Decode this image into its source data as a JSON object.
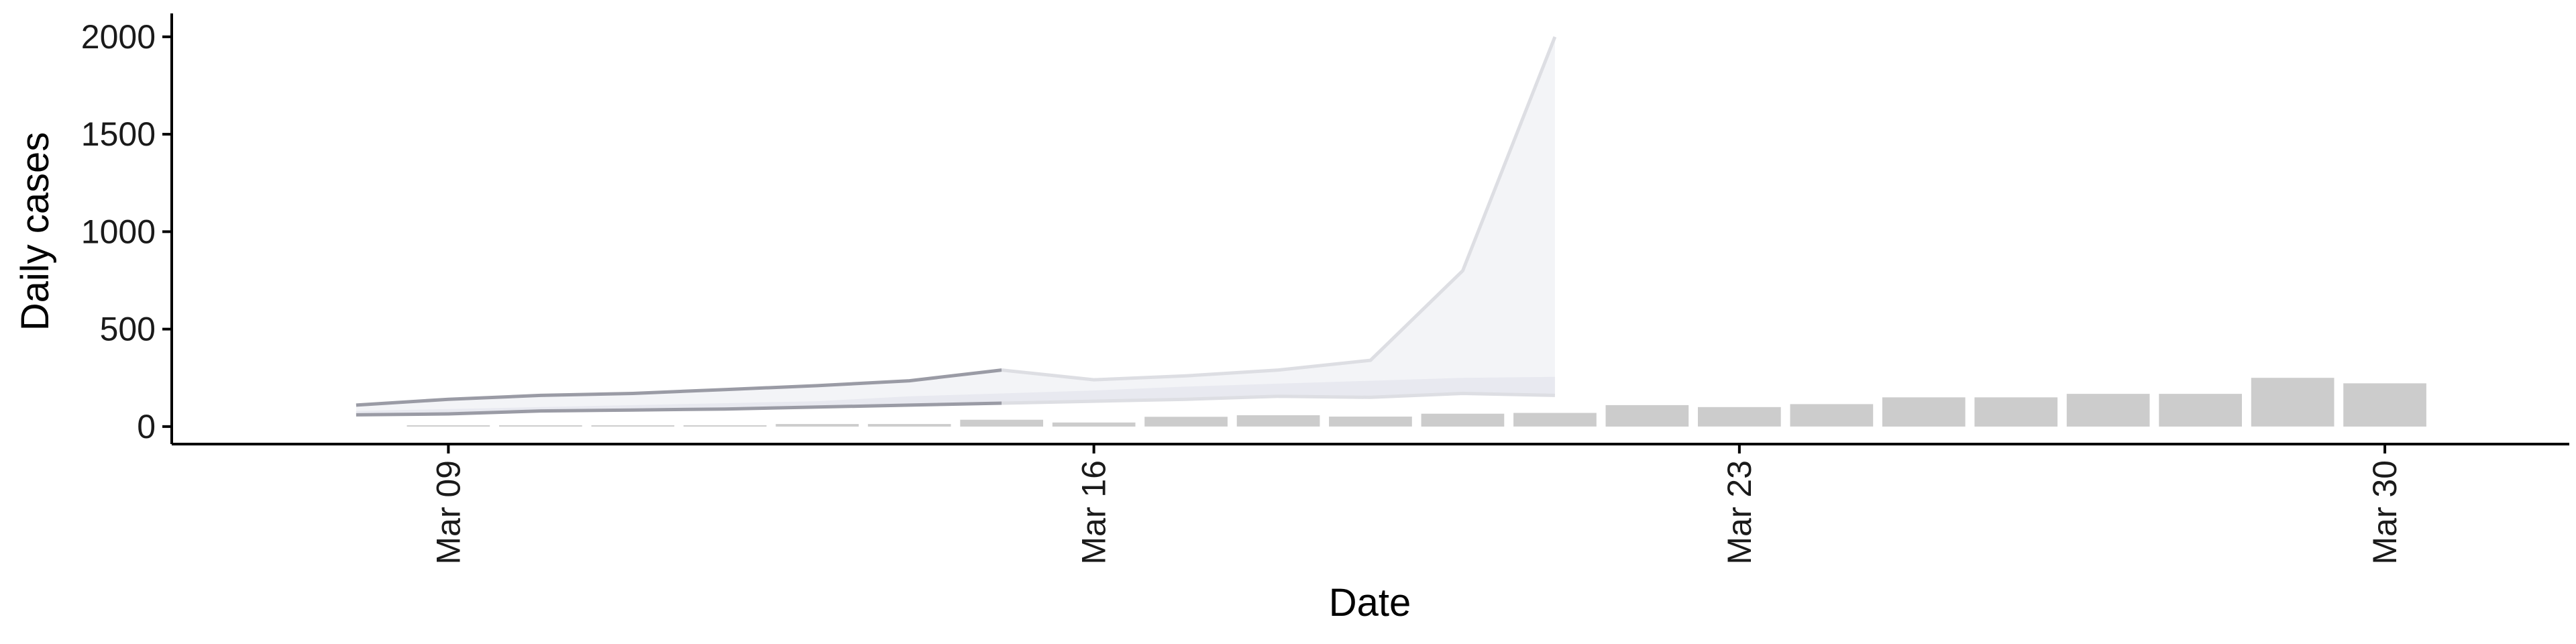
{
  "chart_data": {
    "type": "bar",
    "xlabel": "Date",
    "ylabel": "Daily cases",
    "ylim": [
      -90,
      2120
    ],
    "yticks": [
      0,
      500,
      1000,
      1500,
      2000
    ],
    "xticks": [
      {
        "date": "2020-03-09",
        "label": "Mar 09"
      },
      {
        "date": "2020-03-16",
        "label": "Mar 16"
      },
      {
        "date": "2020-03-23",
        "label": "Mar 23"
      },
      {
        "date": "2020-03-30",
        "label": "Mar 30"
      }
    ],
    "xlim": [
      "2020-03-06",
      "2020-04-01"
    ],
    "grid": false,
    "legend": "none",
    "colors": {
      "bars": "#cccccc",
      "line_dark": "#9a9ba5",
      "line_light": "#dddee3",
      "ribbon_wide": "#f3f4f7",
      "ribbon_narrow": "#e8e9f0",
      "axis": "#000000"
    },
    "bars": [
      {
        "date": "2020-03-09",
        "value": 0
      },
      {
        "date": "2020-03-10",
        "value": 1
      },
      {
        "date": "2020-03-11",
        "value": 2
      },
      {
        "date": "2020-03-12",
        "value": 3
      },
      {
        "date": "2020-03-13",
        "value": 13
      },
      {
        "date": "2020-03-14",
        "value": 13
      },
      {
        "date": "2020-03-15",
        "value": 35
      },
      {
        "date": "2020-03-16",
        "value": 21
      },
      {
        "date": "2020-03-17",
        "value": 50
      },
      {
        "date": "2020-03-18",
        "value": 58
      },
      {
        "date": "2020-03-19",
        "value": 51
      },
      {
        "date": "2020-03-20",
        "value": 66
      },
      {
        "date": "2020-03-21",
        "value": 70
      },
      {
        "date": "2020-03-22",
        "value": 110
      },
      {
        "date": "2020-03-23",
        "value": 100
      },
      {
        "date": "2020-03-24",
        "value": 115
      },
      {
        "date": "2020-03-25",
        "value": 150
      },
      {
        "date": "2020-03-26",
        "value": 150
      },
      {
        "date": "2020-03-27",
        "value": 168
      },
      {
        "date": "2020-03-28",
        "value": 168
      },
      {
        "date": "2020-03-29",
        "value": 250
      },
      {
        "date": "2020-03-30",
        "value": 222
      }
    ],
    "nowcast_dates": [
      "2020-03-08",
      "2020-03-09",
      "2020-03-10",
      "2020-03-11",
      "2020-03-12",
      "2020-03-13",
      "2020-03-14",
      "2020-03-15",
      "2020-03-16",
      "2020-03-17",
      "2020-03-18",
      "2020-03-19",
      "2020-03-20",
      "2020-03-21"
    ],
    "upper_line": [
      110,
      140,
      160,
      170,
      190,
      210,
      235,
      290,
      240,
      260,
      290,
      340,
      800,
      2000
    ],
    "lower_line": [
      60,
      65,
      80,
      85,
      90,
      100,
      110,
      120,
      130,
      140,
      155,
      150,
      170,
      160
    ],
    "ribbon_narrow_top": [
      80,
      90,
      100,
      110,
      120,
      130,
      155,
      170,
      185,
      205,
      220,
      235,
      250,
      255
    ],
    "ribbon_narrow_bottom": [
      60,
      65,
      80,
      85,
      90,
      100,
      110,
      120,
      130,
      140,
      155,
      150,
      170,
      160
    ]
  }
}
